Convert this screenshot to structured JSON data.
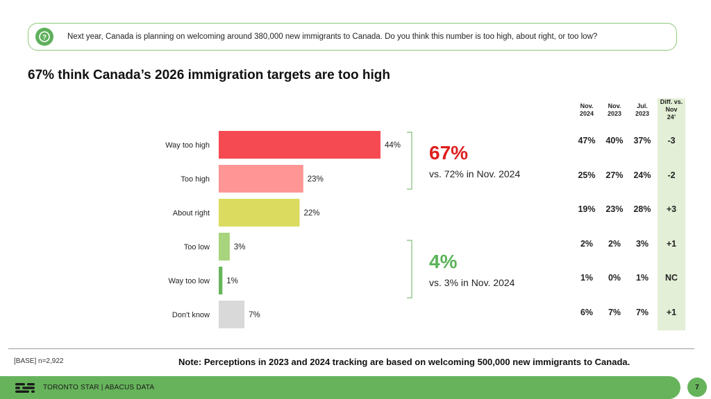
{
  "question": {
    "text": "Next year, Canada is planning on welcoming around 380,000 new immigrants to Canada. Do you think this number is too high, about right, or too low?",
    "icon": "question-bubble-icon"
  },
  "title": "67% think Canada’s 2026 immigration targets are too high",
  "chart_data": {
    "type": "bar",
    "orientation": "horizontal",
    "categories": [
      "Way too high",
      "Too high",
      "About right",
      "Too low",
      "Way too low",
      "Don't know"
    ],
    "values": [
      44,
      23,
      22,
      3,
      1,
      7
    ],
    "labels": [
      "44%",
      "23%",
      "22%",
      "3%",
      "1%",
      "7%"
    ],
    "colors": [
      "#f64a53",
      "#ff9595",
      "#dadb5f",
      "#a7d47c",
      "#67b55b",
      "#d9d9d9"
    ],
    "xlim": [
      0,
      44
    ]
  },
  "callouts": {
    "high": {
      "value": "67%",
      "sub": "vs. 72% in Nov. 2024",
      "color": "#e01e1e"
    },
    "low": {
      "value": "4%",
      "sub": "vs.  3% in Nov. 2024",
      "color": "#5cb35a"
    }
  },
  "table": {
    "headers": [
      [
        "Nov.",
        "2024"
      ],
      [
        "Nov.",
        "2023"
      ],
      [
        "Jul.",
        "2023"
      ],
      [
        "Diff. vs.",
        "Nov",
        "24’"
      ]
    ],
    "rows": [
      [
        "47%",
        "40%",
        "37%",
        "-3"
      ],
      [
        "25%",
        "27%",
        "24%",
        "-2"
      ],
      [
        "19%",
        "23%",
        "28%",
        "+3"
      ],
      [
        "2%",
        "2%",
        "3%",
        "+1"
      ],
      [
        "1%",
        "0%",
        "1%",
        "NC"
      ],
      [
        "6%",
        "7%",
        "7%",
        "+1"
      ]
    ]
  },
  "base": "[BASE] n=2,922",
  "note": "Note: Perceptions in 2023 and 2024 tracking are based on welcoming 500,000 new immigrants to Canada.",
  "footer": {
    "brand": "TORONTO STAR  |  ABACUS DATA",
    "page": "7"
  }
}
